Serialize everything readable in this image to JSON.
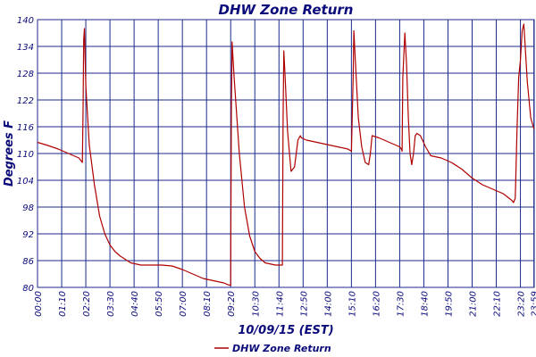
{
  "chart_data": {
    "type": "line",
    "title": "DHW Zone Return",
    "xlabel": "10/09/15 (EST)",
    "ylabel": "Degrees F",
    "ylim": [
      80,
      140
    ],
    "y_ticks": [
      "80",
      "86",
      "92",
      "98",
      "104",
      "110",
      "116",
      "122",
      "128",
      "134",
      "140"
    ],
    "xlim_minutes": [
      0,
      1440
    ],
    "x_ticks": [
      "00:00",
      "01:10",
      "02:20",
      "03:30",
      "04:40",
      "05:50",
      "07:00",
      "08:10",
      "09:20",
      "10:30",
      "11:40",
      "12:50",
      "14:00",
      "15:10",
      "16:20",
      "17:30",
      "18:40",
      "19:50",
      "21:00",
      "22:10",
      "23:20",
      "23:59"
    ],
    "grid": true,
    "legend_position": "bottom",
    "colors": {
      "series": "#b00000",
      "grid": "#1c2b8c",
      "text": "#0a0a7a"
    },
    "series": [
      {
        "name": "DHW Zone Return",
        "x": [
          "00:00",
          "00:30",
          "01:00",
          "01:30",
          "02:00",
          "02:10",
          "02:12",
          "02:14",
          "02:16",
          "02:20",
          "02:30",
          "02:45",
          "03:00",
          "03:15",
          "03:30",
          "03:45",
          "04:00",
          "04:30",
          "05:00",
          "05:30",
          "06:00",
          "06:30",
          "07:00",
          "07:30",
          "08:00",
          "08:30",
          "09:00",
          "09:15",
          "09:20",
          "09:22",
          "09:24",
          "09:30",
          "09:45",
          "10:00",
          "10:15",
          "10:30",
          "10:45",
          "11:00",
          "11:30",
          "11:45",
          "11:50",
          "11:52",
          "11:54",
          "11:58",
          "12:05",
          "12:15",
          "12:25",
          "12:35",
          "12:42",
          "12:45",
          "13:00",
          "13:30",
          "14:00",
          "14:30",
          "15:00",
          "15:10",
          "15:15",
          "15:17",
          "15:20",
          "15:30",
          "15:40",
          "15:50",
          "16:00",
          "16:05",
          "16:10",
          "16:30",
          "17:00",
          "17:30",
          "17:35",
          "17:37",
          "17:39",
          "17:45",
          "17:50",
          "17:55",
          "18:00",
          "18:05",
          "18:10",
          "18:15",
          "18:20",
          "18:30",
          "18:45",
          "19:00",
          "19:30",
          "20:00",
          "20:30",
          "21:00",
          "21:30",
          "22:00",
          "22:30",
          "22:55",
          "23:00",
          "23:05",
          "23:10",
          "23:15",
          "23:20",
          "23:25",
          "23:30",
          "23:40",
          "23:50",
          "23:59"
        ],
        "y": [
          112.5,
          111.8,
          111.0,
          110.0,
          109.0,
          108.0,
          120.0,
          135.5,
          138.0,
          125.0,
          112.0,
          103.0,
          96.0,
          92.0,
          89.5,
          88.0,
          87.0,
          85.5,
          85.0,
          85.0,
          85.0,
          84.8,
          84.0,
          83.0,
          82.0,
          81.5,
          81.0,
          80.5,
          80.5,
          120.0,
          135.0,
          127.0,
          110.0,
          98.0,
          91.5,
          88.0,
          86.5,
          85.5,
          85.0,
          85.0,
          85.0,
          118.0,
          133.0,
          127.0,
          115.0,
          106.0,
          107.0,
          113.0,
          114.0,
          113.5,
          113.0,
          112.5,
          112.0,
          111.5,
          111.0,
          110.5,
          127.0,
          137.5,
          133.0,
          118.0,
          111.5,
          108.0,
          107.5,
          110.0,
          114.0,
          113.5,
          112.5,
          111.5,
          111.0,
          110.5,
          127.0,
          137.0,
          130.0,
          118.0,
          110.0,
          107.5,
          110.0,
          114.0,
          114.5,
          114.0,
          111.5,
          109.5,
          109.0,
          108.0,
          106.5,
          104.5,
          103.0,
          102.0,
          101.0,
          99.5,
          99.0,
          100.0,
          115.0,
          127.0,
          131.0,
          137.5,
          139.0,
          126.0,
          118.0,
          115.5
        ]
      }
    ]
  }
}
